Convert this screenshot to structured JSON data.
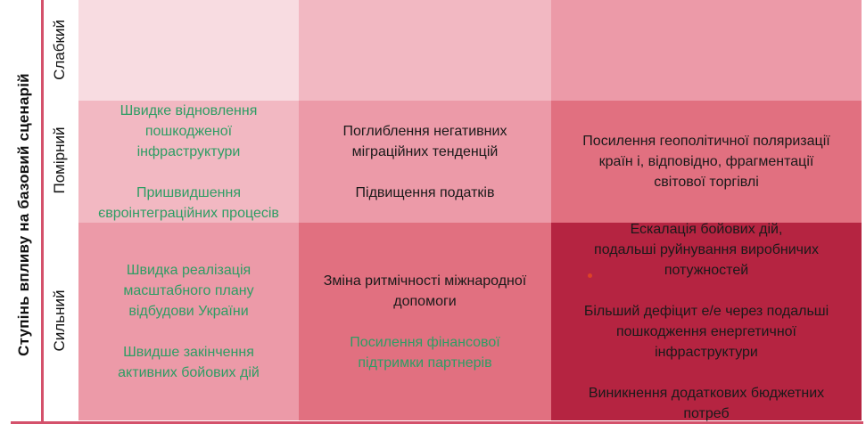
{
  "figure": {
    "type": "qualitative-risk-matrix",
    "y_axis_title": "Ступінь впливу на базовий сценарій",
    "row_labels": [
      "Слабкий",
      "Помірний",
      "Сильний"
    ]
  },
  "cells": {
    "r1c1": {
      "row": "Слабкий",
      "col": 1,
      "level": 1,
      "items": []
    },
    "r1c2": {
      "row": "Слабкий",
      "col": 2,
      "level": 2,
      "items": []
    },
    "r1c3": {
      "row": "Слабкий",
      "col": 3,
      "level": 3,
      "items": []
    },
    "r2c1": {
      "row": "Помірний",
      "col": 1,
      "level": 2,
      "items": [
        {
          "tone": "positive",
          "text": "Швидке відновлення\nпошкодженої\nінфраструктури"
        },
        {
          "tone": "positive",
          "text": "Пришвидшення\nєвроінтеграційних процесів"
        }
      ]
    },
    "r2c2": {
      "row": "Помірний",
      "col": 2,
      "level": 3,
      "items": [
        {
          "tone": "negative",
          "text": "Поглиблення негативних\nміграційних тенденцій"
        },
        {
          "tone": "negative",
          "text": "Підвищення податків"
        }
      ]
    },
    "r2c3": {
      "row": "Помірний",
      "col": 3,
      "level": 4,
      "items": [
        {
          "tone": "negative",
          "text": "Посилення геополітичної поляризації\nкраїн і, відповідно, фрагментації\nсвітової торгівлі"
        }
      ]
    },
    "r3c1": {
      "row": "Сильний",
      "col": 1,
      "level": 3,
      "items": [
        {
          "tone": "positive",
          "text": "Швидка реалізація\nмасштабного плану\nвідбудови України"
        },
        {
          "tone": "positive",
          "text": "Швидше закінчення\nактивних бойових дій"
        }
      ]
    },
    "r3c2": {
      "row": "Сильний",
      "col": 2,
      "level": 4,
      "items": [
        {
          "tone": "negative",
          "text": "Зміна ритмічності міжнародної\nдопомоги"
        },
        {
          "tone": "positive",
          "text": "Посилення фінансової\nпідтримки партнерів"
        }
      ]
    },
    "r3c3": {
      "row": "Сильний",
      "col": 3,
      "level": 5,
      "items": [
        {
          "tone": "negative",
          "text": "Ескалація бойових дій,\nподальші руйнування виробничих\nпотужностей"
        },
        {
          "tone": "negative",
          "text": "Більший дефіцит е/е через подальші\nпошкодження енергетичної\nінфраструктури"
        },
        {
          "tone": "negative",
          "text": "Виникнення додаткових бюджетних\nпотреб"
        }
      ]
    }
  },
  "colors": {
    "level_1": "#f8dce1",
    "level_2": "#f2b8c2",
    "level_3": "#ec9aa8",
    "level_4": "#e17080",
    "level_5": "#b52441",
    "axis_line": "#d4516b",
    "positive_text": "#2e9d64",
    "negative_text": "#1a1a1a",
    "stray_dot": "#dd4127"
  }
}
